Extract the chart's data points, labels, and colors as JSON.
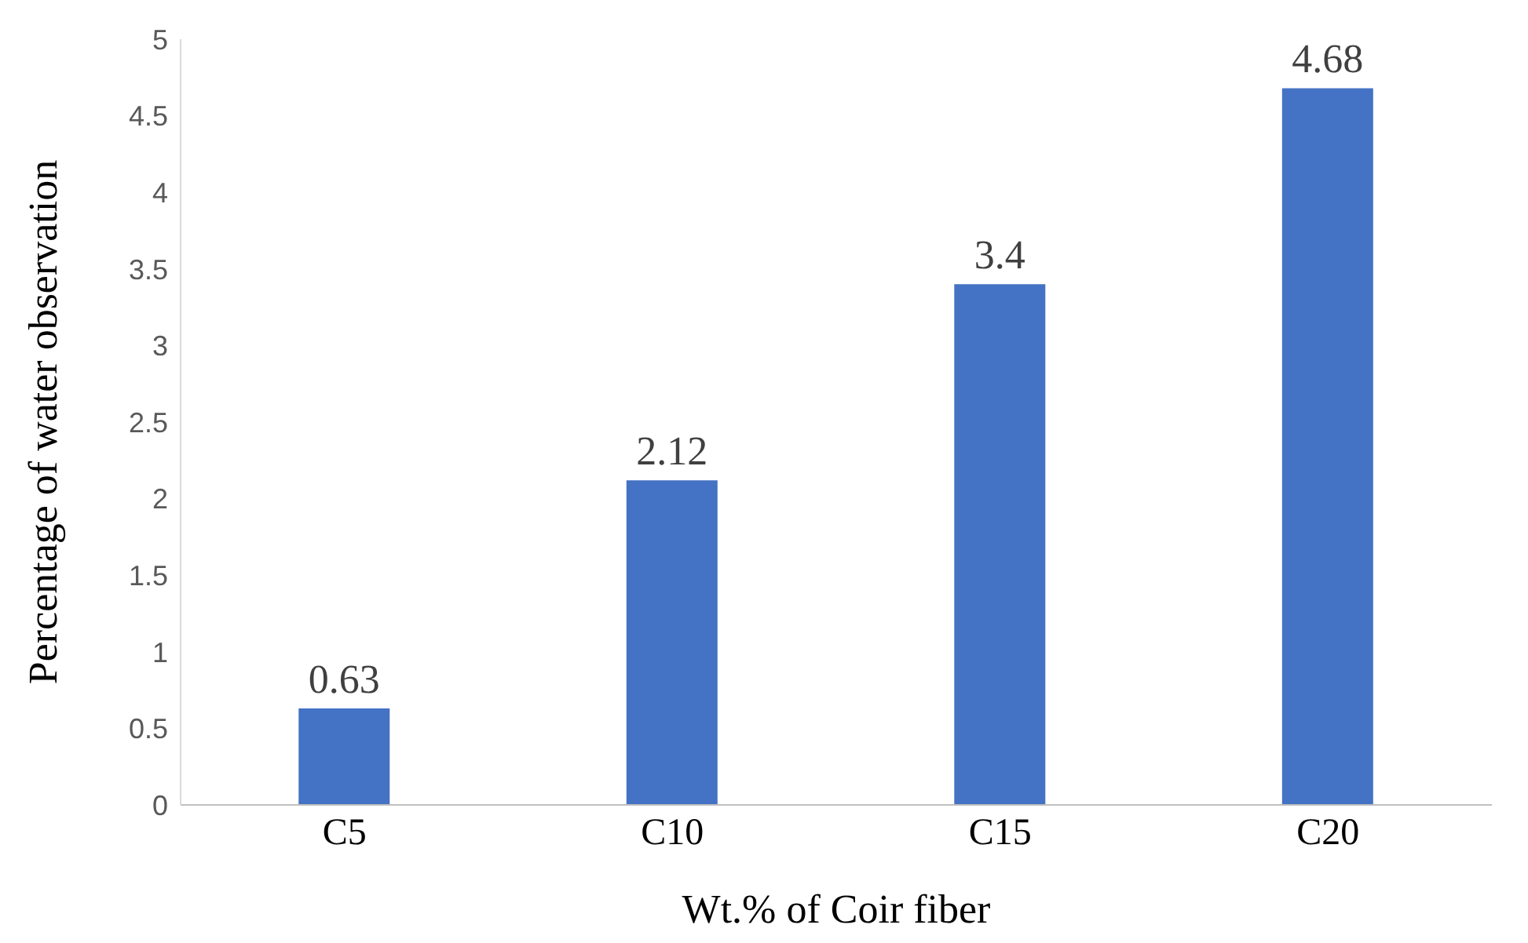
{
  "chart_data": {
    "type": "bar",
    "xlabel": "Wt.% of Coir fiber",
    "ylabel": "Percentage of  water observation",
    "categories": [
      "C5",
      "C10",
      "C15",
      "C20"
    ],
    "values": [
      0.63,
      2.12,
      3.4,
      4.68
    ],
    "color": "#4472c4",
    "ylim": [
      0,
      5
    ],
    "yticks": [
      0,
      0.5,
      1,
      1.5,
      2,
      2.5,
      3,
      3.5,
      4,
      4.5,
      5
    ],
    "data_labels": true,
    "grid": false
  }
}
